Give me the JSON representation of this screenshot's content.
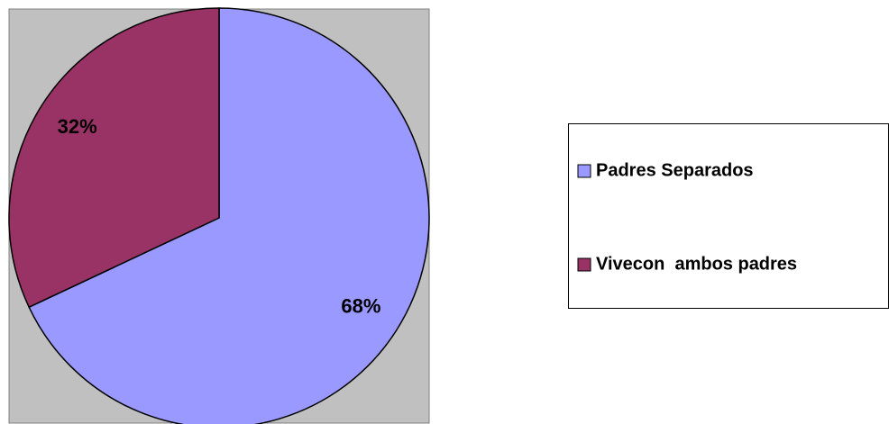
{
  "chart_data": {
    "type": "pie",
    "categories": [
      "Padres Separados",
      "Vivecon  ambos padres"
    ],
    "values": [
      68,
      32
    ],
    "value_labels": [
      "68%",
      "32%"
    ],
    "colors": [
      "#9999ff",
      "#993366"
    ],
    "legend": "right"
  }
}
